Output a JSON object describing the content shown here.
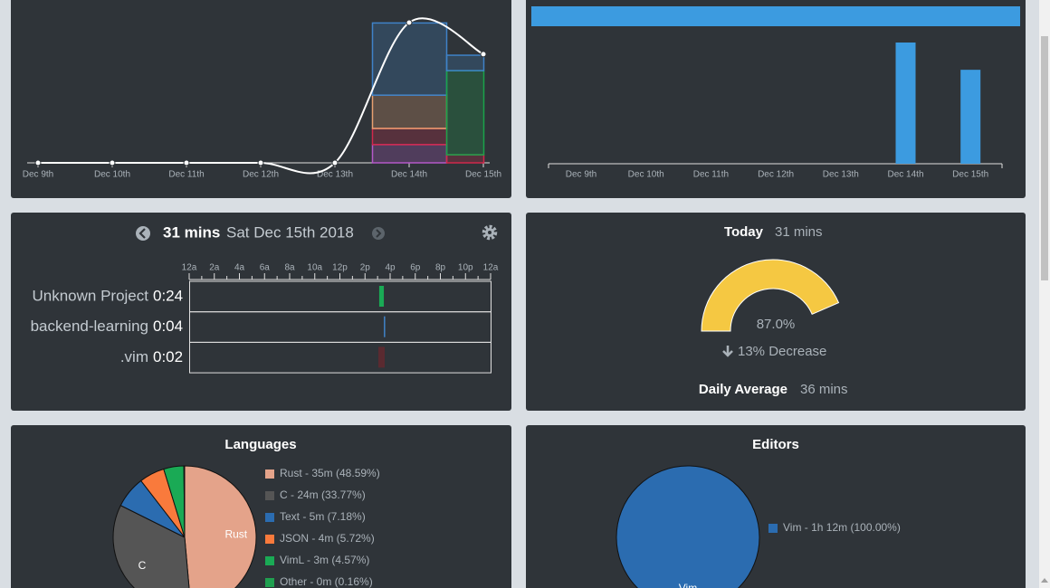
{
  "activity_chart": {
    "categories": [
      "Dec 9th",
      "Dec 10th",
      "Dec 11th",
      "Dec 12th",
      "Dec 13th",
      "Dec 14th",
      "Dec 15th"
    ],
    "totals": [
      0,
      0,
      0,
      0,
      0,
      40,
      31
    ],
    "segments": [
      {
        "color": "#b458c8",
        "values": [
          0,
          0,
          0,
          0,
          0,
          5.2,
          0
        ]
      },
      {
        "color": "#d0284c",
        "values": [
          0,
          0,
          0,
          0,
          0,
          4.6,
          2.3
        ]
      },
      {
        "color": "#1aa34a",
        "values": [
          0,
          0,
          0,
          0,
          0,
          0,
          24
        ]
      },
      {
        "color": "#e8a070",
        "values": [
          0,
          0,
          0,
          0,
          0,
          9.5,
          0
        ]
      },
      {
        "color": "#3f82c8",
        "values": [
          0,
          0,
          0,
          0,
          0,
          20.6,
          4.4
        ]
      }
    ]
  },
  "daily_bars": {
    "categories": [
      "Dec 9th",
      "Dec 10th",
      "Dec 11th",
      "Dec 12th",
      "Dec 13th",
      "Dec 14th",
      "Dec 15th"
    ],
    "values": [
      0,
      0,
      0,
      0,
      0,
      40,
      31
    ],
    "color": "#3c9be0"
  },
  "timeline": {
    "duration": "31 mins",
    "date": "Sat Dec 15th 2018",
    "hours": [
      "12a",
      "2a",
      "4a",
      "6a",
      "8a",
      "10a",
      "12p",
      "2p",
      "4p",
      "6p",
      "8p",
      "10p",
      "12a"
    ],
    "rows": [
      {
        "project": "Unknown Project",
        "time": "0:24",
        "color": "#1aaa55",
        "start": 15.13,
        "end": 15.5
      },
      {
        "project": "backend-learning",
        "time": "0:04",
        "color": "#3f82c8",
        "start": 15.5,
        "end": 15.58
      },
      {
        "project": ".vim",
        "time": "0:02",
        "color": "#5a2a30",
        "start": 15.06,
        "end": 15.57
      }
    ]
  },
  "today": {
    "label": "Today",
    "value": "31 mins",
    "gauge_percent": 87.0,
    "gauge_label": "87.0%",
    "change": "13% Decrease",
    "average_label": "Daily Average",
    "average": "36 mins"
  },
  "languages": {
    "title": "Languages",
    "labels": [
      "Rust - 35m (48.59%)",
      "C - 24m (33.77%)",
      "Text - 5m (7.18%)",
      "JSON - 4m (5.72%)",
      "VimL - 3m (4.57%)",
      "Other - 0m (0.16%)"
    ],
    "values": [
      48.59,
      33.77,
      7.18,
      5.72,
      4.57,
      0.16
    ],
    "colors": [
      "#e4a38a",
      "#555555",
      "#2b6cb0",
      "#f97a3c",
      "#1aaa55",
      "#20a050"
    ],
    "slice_labels": [
      "Rust",
      "C",
      null,
      null,
      null,
      null
    ]
  },
  "editors": {
    "title": "Editors",
    "labels": [
      "Vim - 1h 12m (100.00%)"
    ],
    "values": [
      100.0
    ],
    "colors": [
      "#2b6cb0"
    ],
    "slice_labels": [
      "Vim"
    ]
  }
}
